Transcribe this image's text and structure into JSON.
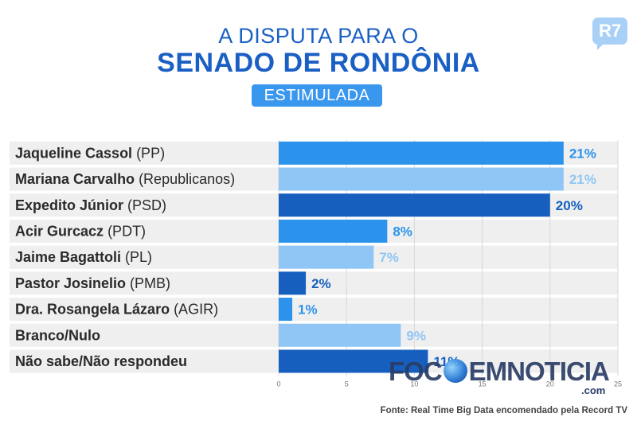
{
  "header": {
    "line1": "A DISPUTA PARA O",
    "line2": "SENADO DE RONDÔNIA",
    "badge": "ESTIMULADA"
  },
  "logo": {
    "text": "R7"
  },
  "source": "Fonte: Real Time Big Data encomendado pela Record TV",
  "watermark": {
    "left": "FOC",
    "right": "EMNOTICIA",
    "suffix": ".com"
  },
  "colors": {
    "light_blue": "#8fc6f5",
    "mid_blue": "#2b93ec",
    "dark_blue": "#175fbf",
    "row_gray": "#efefef"
  },
  "chart_data": {
    "type": "bar",
    "orientation": "horizontal",
    "categories": [
      {
        "name": "Jaqueline Cassol",
        "party": "(PP)"
      },
      {
        "name": "Mariana Carvalho",
        "party": "(Republicanos)"
      },
      {
        "name": "Expedito Júnior",
        "party": "(PSD)"
      },
      {
        "name": "Acir Gurcacz",
        "party": "(PDT)"
      },
      {
        "name": "Jaime Bagattoli",
        "party": "(PL)"
      },
      {
        "name": "Pastor Josinelio",
        "party": "(PMB)"
      },
      {
        "name": "Dra. Rosangela Lázaro",
        "party": "(AGIR)"
      },
      {
        "name": "Branco/Nulo",
        "party": ""
      },
      {
        "name": "Não sabe/Não respondeu",
        "party": ""
      }
    ],
    "values": [
      21,
      21,
      20,
      8,
      7,
      2,
      1,
      9,
      11
    ],
    "labels": [
      "21%",
      "21%",
      "20%",
      "8%",
      "7%",
      "2%",
      "1%",
      "9%",
      "11%"
    ],
    "bar_colors": [
      "#2b93ec",
      "#8fc6f5",
      "#175fbf",
      "#2b93ec",
      "#8fc6f5",
      "#175fbf",
      "#2b93ec",
      "#8fc6f5",
      "#175fbf"
    ],
    "xlim": [
      0,
      25
    ],
    "xticks": [
      0,
      5,
      10,
      15,
      20,
      25
    ],
    "grid": true
  }
}
